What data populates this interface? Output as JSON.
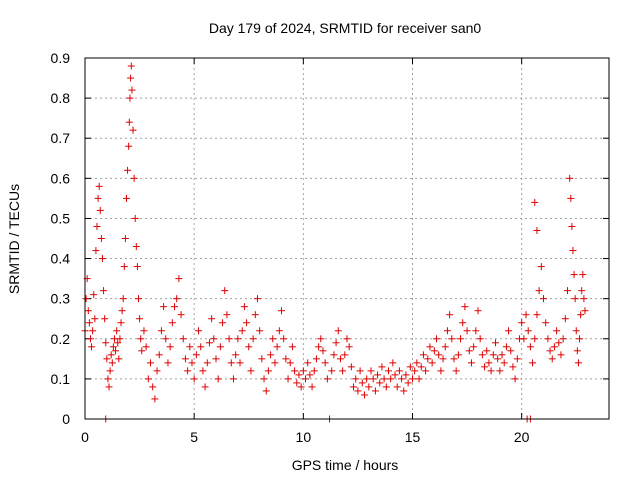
{
  "chart_data": {
    "type": "scatter",
    "title": "Day 179 of 2024, SRMTID for receiver san0",
    "xlabel": "GPS time / hours",
    "ylabel": "SRMTID / TECUs",
    "xlim": [
      0,
      24
    ],
    "ylim": [
      0,
      0.9
    ],
    "xticks": [
      0,
      5,
      10,
      15,
      20
    ],
    "xtick_labels": [
      "0",
      "5",
      "10",
      "15",
      "20"
    ],
    "yticks": [
      0,
      0.1,
      0.2,
      0.3,
      0.4,
      0.5,
      0.6,
      0.7,
      0.8,
      0.9
    ],
    "ytick_labels": [
      "0",
      "0.1",
      "0.2",
      "0.3",
      "0.4",
      "0.5",
      "0.6",
      "0.7",
      "0.8",
      "0.9"
    ],
    "grid": true,
    "marker": "plus",
    "marker_color": "#e00000",
    "series": [
      {
        "name": "SRMTID",
        "points": [
          [
            0.0,
            0.22
          ],
          [
            0.05,
            0.3
          ],
          [
            0.1,
            0.35
          ],
          [
            0.15,
            0.27
          ],
          [
            0.2,
            0.24
          ],
          [
            0.25,
            0.2
          ],
          [
            0.3,
            0.18
          ],
          [
            0.35,
            0.22
          ],
          [
            0.4,
            0.31
          ],
          [
            0.45,
            0.25
          ],
          [
            0.5,
            0.42
          ],
          [
            0.55,
            0.48
          ],
          [
            0.6,
            0.55
          ],
          [
            0.65,
            0.58
          ],
          [
            0.7,
            0.52
          ],
          [
            0.75,
            0.45
          ],
          [
            0.8,
            0.4
          ],
          [
            0.85,
            0.32
          ],
          [
            0.9,
            0.25
          ],
          [
            0.95,
            0.19
          ],
          [
            1.0,
            0.15
          ],
          [
            1.05,
            0.1
          ],
          [
            1.1,
            0.08
          ],
          [
            1.15,
            0.12
          ],
          [
            1.2,
            0.16
          ],
          [
            1.25,
            0.14
          ],
          [
            1.3,
            0.18
          ],
          [
            1.35,
            0.2
          ],
          [
            1.4,
            0.17
          ],
          [
            1.45,
            0.22
          ],
          [
            1.5,
            0.19
          ],
          [
            1.55,
            0.15
          ],
          [
            1.6,
            0.2
          ],
          [
            1.65,
            0.24
          ],
          [
            1.7,
            0.27
          ],
          [
            1.75,
            0.3
          ],
          [
            1.8,
            0.38
          ],
          [
            1.85,
            0.45
          ],
          [
            1.9,
            0.55
          ],
          [
            1.95,
            0.62
          ],
          [
            2.0,
            0.68
          ],
          [
            2.03,
            0.74
          ],
          [
            2.06,
            0.8
          ],
          [
            2.09,
            0.85
          ],
          [
            2.12,
            0.88
          ],
          [
            2.15,
            0.82
          ],
          [
            2.2,
            0.72
          ],
          [
            2.25,
            0.6
          ],
          [
            2.3,
            0.5
          ],
          [
            2.35,
            0.43
          ],
          [
            2.4,
            0.38
          ],
          [
            2.45,
            0.3
          ],
          [
            2.5,
            0.25
          ],
          [
            2.55,
            0.2
          ],
          [
            2.6,
            0.17
          ],
          [
            2.7,
            0.22
          ],
          [
            2.8,
            0.18
          ],
          [
            2.9,
            0.1
          ],
          [
            3.0,
            0.14
          ],
          [
            3.1,
            0.08
          ],
          [
            3.2,
            0.05
          ],
          [
            3.3,
            0.12
          ],
          [
            3.4,
            0.16
          ],
          [
            3.5,
            0.22
          ],
          [
            3.6,
            0.28
          ],
          [
            3.7,
            0.2
          ],
          [
            3.8,
            0.14
          ],
          [
            3.9,
            0.18
          ],
          [
            4.0,
            0.24
          ],
          [
            4.1,
            0.28
          ],
          [
            4.2,
            0.3
          ],
          [
            4.3,
            0.35
          ],
          [
            4.4,
            0.26
          ],
          [
            4.5,
            0.2
          ],
          [
            4.6,
            0.15
          ],
          [
            4.7,
            0.12
          ],
          [
            4.8,
            0.18
          ],
          [
            4.9,
            0.14
          ],
          [
            5.0,
            0.1
          ],
          [
            5.1,
            0.16
          ],
          [
            5.2,
            0.22
          ],
          [
            5.3,
            0.18
          ],
          [
            5.4,
            0.12
          ],
          [
            5.5,
            0.08
          ],
          [
            5.6,
            0.14
          ],
          [
            5.7,
            0.19
          ],
          [
            5.8,
            0.25
          ],
          [
            5.9,
            0.2
          ],
          [
            6.0,
            0.15
          ],
          [
            6.1,
            0.1
          ],
          [
            6.2,
            0.18
          ],
          [
            6.3,
            0.24
          ],
          [
            6.4,
            0.32
          ],
          [
            6.5,
            0.26
          ],
          [
            6.6,
            0.2
          ],
          [
            6.7,
            0.14
          ],
          [
            6.8,
            0.1
          ],
          [
            6.9,
            0.16
          ],
          [
            7.0,
            0.2
          ],
          [
            7.1,
            0.14
          ],
          [
            7.2,
            0.22
          ],
          [
            7.3,
            0.28
          ],
          [
            7.4,
            0.24
          ],
          [
            7.5,
            0.18
          ],
          [
            7.6,
            0.12
          ],
          [
            7.7,
            0.2
          ],
          [
            7.8,
            0.26
          ],
          [
            7.9,
            0.3
          ],
          [
            8.0,
            0.22
          ],
          [
            8.1,
            0.15
          ],
          [
            8.2,
            0.1
          ],
          [
            8.3,
            0.07
          ],
          [
            8.4,
            0.12
          ],
          [
            8.5,
            0.16
          ],
          [
            8.6,
            0.2
          ],
          [
            8.7,
            0.14
          ],
          [
            8.8,
            0.18
          ],
          [
            8.9,
            0.22
          ],
          [
            9.0,
            0.27
          ],
          [
            9.1,
            0.2
          ],
          [
            9.2,
            0.15
          ],
          [
            9.3,
            0.1
          ],
          [
            9.4,
            0.14
          ],
          [
            9.5,
            0.18
          ],
          [
            9.6,
            0.12
          ],
          [
            9.7,
            0.09
          ],
          [
            9.8,
            0.11
          ],
          [
            9.9,
            0.08
          ],
          [
            10.0,
            0.12
          ],
          [
            10.1,
            0.1
          ],
          [
            10.2,
            0.14
          ],
          [
            10.3,
            0.11
          ],
          [
            10.4,
            0.08
          ],
          [
            10.5,
            0.12
          ],
          [
            10.6,
            0.15
          ],
          [
            10.7,
            0.18
          ],
          [
            10.8,
            0.2
          ],
          [
            10.9,
            0.17
          ],
          [
            11.0,
            0.14
          ],
          [
            11.1,
            0.1
          ],
          [
            11.2,
            0.0
          ],
          [
            11.3,
            0.12
          ],
          [
            11.4,
            0.16
          ],
          [
            11.5,
            0.19
          ],
          [
            11.6,
            0.22
          ],
          [
            11.7,
            0.15
          ],
          [
            11.8,
            0.12
          ],
          [
            11.9,
            0.16
          ],
          [
            12.0,
            0.2
          ],
          [
            12.1,
            0.18
          ],
          [
            12.2,
            0.13
          ],
          [
            12.3,
            0.08
          ],
          [
            12.4,
            0.1
          ],
          [
            12.5,
            0.07
          ],
          [
            12.6,
            0.12
          ],
          [
            12.7,
            0.09
          ],
          [
            12.8,
            0.06
          ],
          [
            12.9,
            0.1
          ],
          [
            13.0,
            0.08
          ],
          [
            13.1,
            0.12
          ],
          [
            13.2,
            0.1
          ],
          [
            13.3,
            0.07
          ],
          [
            13.4,
            0.11
          ],
          [
            13.5,
            0.09
          ],
          [
            13.6,
            0.13
          ],
          [
            13.7,
            0.1
          ],
          [
            13.8,
            0.08
          ],
          [
            13.9,
            0.12
          ],
          [
            14.0,
            0.1
          ],
          [
            14.1,
            0.14
          ],
          [
            14.2,
            0.11
          ],
          [
            14.3,
            0.08
          ],
          [
            14.4,
            0.12
          ],
          [
            14.5,
            0.1
          ],
          [
            14.6,
            0.07
          ],
          [
            14.7,
            0.11
          ],
          [
            14.8,
            0.09
          ],
          [
            14.9,
            0.13
          ],
          [
            15.0,
            0.1
          ],
          [
            15.1,
            0.12
          ],
          [
            15.2,
            0.14
          ],
          [
            15.3,
            0.1
          ],
          [
            15.4,
            0.13
          ],
          [
            15.5,
            0.16
          ],
          [
            15.6,
            0.12
          ],
          [
            15.7,
            0.15
          ],
          [
            15.8,
            0.18
          ],
          [
            15.9,
            0.14
          ],
          [
            16.0,
            0.17
          ],
          [
            16.1,
            0.2
          ],
          [
            16.2,
            0.16
          ],
          [
            16.3,
            0.12
          ],
          [
            16.4,
            0.15
          ],
          [
            16.5,
            0.18
          ],
          [
            16.6,
            0.22
          ],
          [
            16.7,
            0.26
          ],
          [
            16.8,
            0.2
          ],
          [
            16.9,
            0.15
          ],
          [
            17.0,
            0.12
          ],
          [
            17.1,
            0.16
          ],
          [
            17.2,
            0.2
          ],
          [
            17.3,
            0.24
          ],
          [
            17.4,
            0.28
          ],
          [
            17.5,
            0.22
          ],
          [
            17.6,
            0.17
          ],
          [
            17.7,
            0.14
          ],
          [
            17.8,
            0.18
          ],
          [
            17.9,
            0.22
          ],
          [
            18.0,
            0.27
          ],
          [
            18.1,
            0.2
          ],
          [
            18.2,
            0.16
          ],
          [
            18.3,
            0.13
          ],
          [
            18.4,
            0.17
          ],
          [
            18.5,
            0.14
          ],
          [
            18.6,
            0.12
          ],
          [
            18.7,
            0.16
          ],
          [
            18.8,
            0.19
          ],
          [
            18.9,
            0.15
          ],
          [
            19.0,
            0.12
          ],
          [
            19.1,
            0.16
          ],
          [
            19.2,
            0.14
          ],
          [
            19.3,
            0.18
          ],
          [
            19.4,
            0.22
          ],
          [
            19.5,
            0.17
          ],
          [
            19.6,
            0.13
          ],
          [
            19.7,
            0.1
          ],
          [
            19.8,
            0.15
          ],
          [
            19.9,
            0.2
          ],
          [
            20.0,
            0.24
          ],
          [
            20.1,
            0.2
          ],
          [
            20.2,
            0.26
          ],
          [
            20.3,
            0.22
          ],
          [
            20.4,
            0.18
          ],
          [
            20.5,
            0.14
          ],
          [
            20.6,
            0.2
          ],
          [
            20.7,
            0.26
          ],
          [
            20.8,
            0.32
          ],
          [
            20.9,
            0.38
          ],
          [
            21.0,
            0.3
          ],
          [
            21.1,
            0.24
          ],
          [
            21.2,
            0.2
          ],
          [
            21.3,
            0.17
          ],
          [
            21.4,
            0.15
          ],
          [
            21.5,
            0.18
          ],
          [
            21.6,
            0.22
          ],
          [
            21.7,
            0.19
          ],
          [
            21.8,
            0.16
          ],
          [
            21.9,
            0.2
          ],
          [
            22.0,
            0.25
          ],
          [
            22.1,
            0.32
          ],
          [
            22.2,
            0.6
          ],
          [
            22.25,
            0.55
          ],
          [
            22.3,
            0.48
          ],
          [
            22.35,
            0.42
          ],
          [
            22.4,
            0.36
          ],
          [
            22.45,
            0.3
          ],
          [
            22.5,
            0.22
          ],
          [
            22.55,
            0.17
          ],
          [
            22.6,
            0.14
          ],
          [
            22.65,
            0.2
          ],
          [
            22.7,
            0.26
          ],
          [
            22.75,
            0.32
          ],
          [
            22.8,
            0.36
          ],
          [
            22.85,
            0.3
          ],
          [
            22.9,
            0.27
          ],
          [
            0.95,
            0.0
          ],
          [
            20.25,
            0.0
          ],
          [
            20.4,
            0.0
          ],
          [
            20.6,
            0.54
          ],
          [
            20.7,
            0.47
          ]
        ]
      }
    ]
  }
}
